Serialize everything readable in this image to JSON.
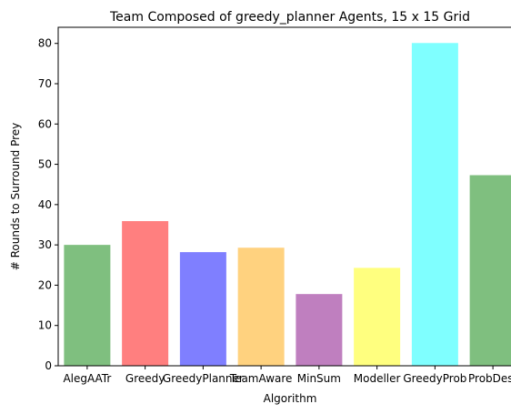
{
  "chart_data": {
    "type": "bar",
    "title": "Team Composed of greedy_planner Agents, 15 x 15 Grid",
    "xlabel": "Algorithm",
    "ylabel": "# Rounds to Surround Prey",
    "categories": [
      "AlegAATr",
      "Greedy",
      "GreedyPlanner",
      "TeamAware",
      "MinSum",
      "Modeller",
      "GreedyProb",
      "ProbDest"
    ],
    "values": [
      30.0,
      35.9,
      28.2,
      29.3,
      17.8,
      24.3,
      80.1,
      47.3
    ],
    "colors": [
      "#7fbf7f",
      "#ff7f7f",
      "#7f7fff",
      "#ffd27f",
      "#bf7fbf",
      "#ffff7f",
      "#7fffff",
      "#7fbf7f"
    ],
    "ylim": [
      0,
      84
    ],
    "yticks": [
      0,
      10,
      20,
      30,
      40,
      50,
      60,
      70,
      80
    ],
    "grid": false,
    "legend": "none"
  }
}
